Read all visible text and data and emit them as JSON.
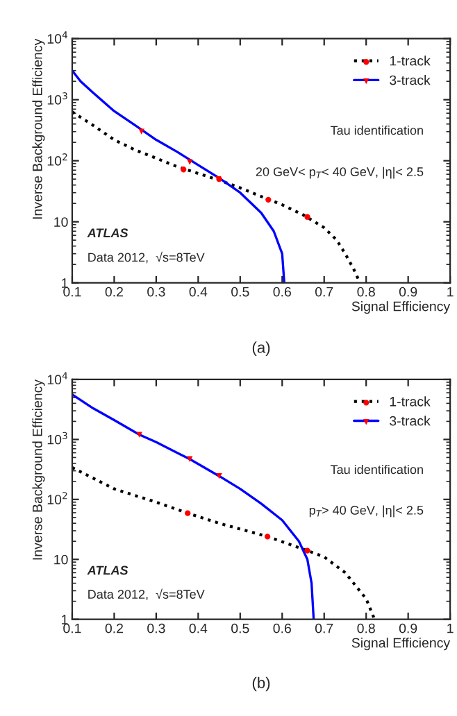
{
  "chart_data": [
    {
      "type": "line",
      "xlabel": "Signal Efficiency",
      "ylabel": "Inverse Background Efficiency",
      "log": "y",
      "xlim": [
        0.1,
        1
      ],
      "ylim": [
        1,
        10000
      ],
      "xticks": [
        0.1,
        0.2,
        0.3,
        0.4,
        0.5,
        0.6,
        0.7,
        0.8,
        0.9,
        1
      ],
      "yticks": [
        1,
        10,
        {
          "value": 100,
          "label": "10$^{2}$"
        },
        {
          "value": 1000,
          "label": "10$^{3}$"
        },
        {
          "value": 10000,
          "label": "10$^{4}$"
        }
      ],
      "legend": "top right",
      "grid": false,
      "annotations": [
        "Tau identification",
        "20 GeV< p$_{T}$< 40 GeV, |η|< 2.5",
        "ATLAS",
        "Data 2012,  √s=8TeV",
        "(a)"
      ],
      "series": [
        {
          "name": "1-track",
          "color": "#000000",
          "line_style": "dotted",
          "marker": "none",
          "x": [
            0.1,
            0.15,
            0.2,
            0.25,
            0.3,
            0.35,
            0.4,
            0.45,
            0.5,
            0.55,
            0.6,
            0.65,
            0.7,
            0.73,
            0.75,
            0.77,
            0.78,
            0.785
          ],
          "values": [
            630,
            380,
            220,
            150,
            110,
            80,
            62,
            48,
            36,
            26,
            19,
            13,
            8,
            5,
            3,
            1.7,
            1.2,
            1
          ]
        },
        {
          "type": "scatter",
          "color": "#ff0000",
          "marker": "circle",
          "x": [
            0.365,
            0.45,
            0.567,
            0.66
          ],
          "values": [
            72,
            50,
            23,
            12
          ]
        },
        {
          "name": "3-track",
          "color": "#0000ff",
          "line_style": "solid",
          "marker": "none",
          "x": [
            0.1,
            0.12,
            0.15,
            0.2,
            0.25,
            0.3,
            0.35,
            0.4,
            0.45,
            0.5,
            0.55,
            0.58,
            0.6,
            0.605
          ],
          "values": [
            3000,
            2000,
            1300,
            650,
            380,
            220,
            140,
            85,
            52,
            30,
            14,
            7,
            3,
            1
          ]
        },
        {
          "type": "scatter",
          "color": "#ff0000",
          "marker": "triangle",
          "x": [
            0.265,
            0.38,
            0.448
          ],
          "values": [
            300,
            95,
            50
          ]
        }
      ]
    },
    {
      "type": "line",
      "xlabel": "Signal Efficiency",
      "ylabel": "Inverse Background Efficiency",
      "log": "y",
      "xlim": [
        0.1,
        1
      ],
      "ylim": [
        1,
        10000
      ],
      "xticks": [
        0.1,
        0.2,
        0.3,
        0.4,
        0.5,
        0.6,
        0.7,
        0.8,
        0.9,
        1
      ],
      "yticks": [
        1,
        10,
        {
          "value": 100,
          "label": "10$^{2}$"
        },
        {
          "value": 1000,
          "label": "10$^{3}$"
        },
        {
          "value": 10000,
          "label": "10$^{4}$"
        }
      ],
      "legend": "top right",
      "grid": false,
      "annotations": [
        "Tau identification",
        "p$_{T}$> 40 GeV, |η|< 2.5",
        "ATLAS",
        "Data 2012,  √s=8TeV",
        "(b)"
      ],
      "series": [
        {
          "name": "1-track",
          "color": "#000000",
          "line_style": "dotted",
          "marker": "none",
          "x": [
            0.1,
            0.2,
            0.3,
            0.375,
            0.45,
            0.565,
            0.66,
            0.7,
            0.75,
            0.8,
            0.82
          ],
          "values": [
            340,
            150,
            90,
            59,
            40,
            24,
            14,
            11,
            6,
            2.2,
            1
          ]
        },
        {
          "type": "scatter",
          "color": "#ff0000",
          "marker": "circle",
          "x": [
            0.375,
            0.565,
            0.66
          ],
          "values": [
            59,
            24,
            14
          ]
        },
        {
          "name": "3-track",
          "color": "#0000ff",
          "line_style": "solid",
          "marker": "none",
          "x": [
            0.1,
            0.15,
            0.2,
            0.26,
            0.3,
            0.38,
            0.45,
            0.5,
            0.55,
            0.6,
            0.64,
            0.66,
            0.67,
            0.675
          ],
          "values": [
            5600,
            3300,
            2100,
            1200,
            900,
            470,
            245,
            150,
            85,
            45,
            20,
            10,
            4,
            1
          ]
        },
        {
          "type": "scatter",
          "color": "#ff0000",
          "marker": "triangle",
          "x": [
            0.26,
            0.38,
            0.45
          ],
          "values": [
            1200,
            470,
            245
          ]
        }
      ]
    }
  ]
}
